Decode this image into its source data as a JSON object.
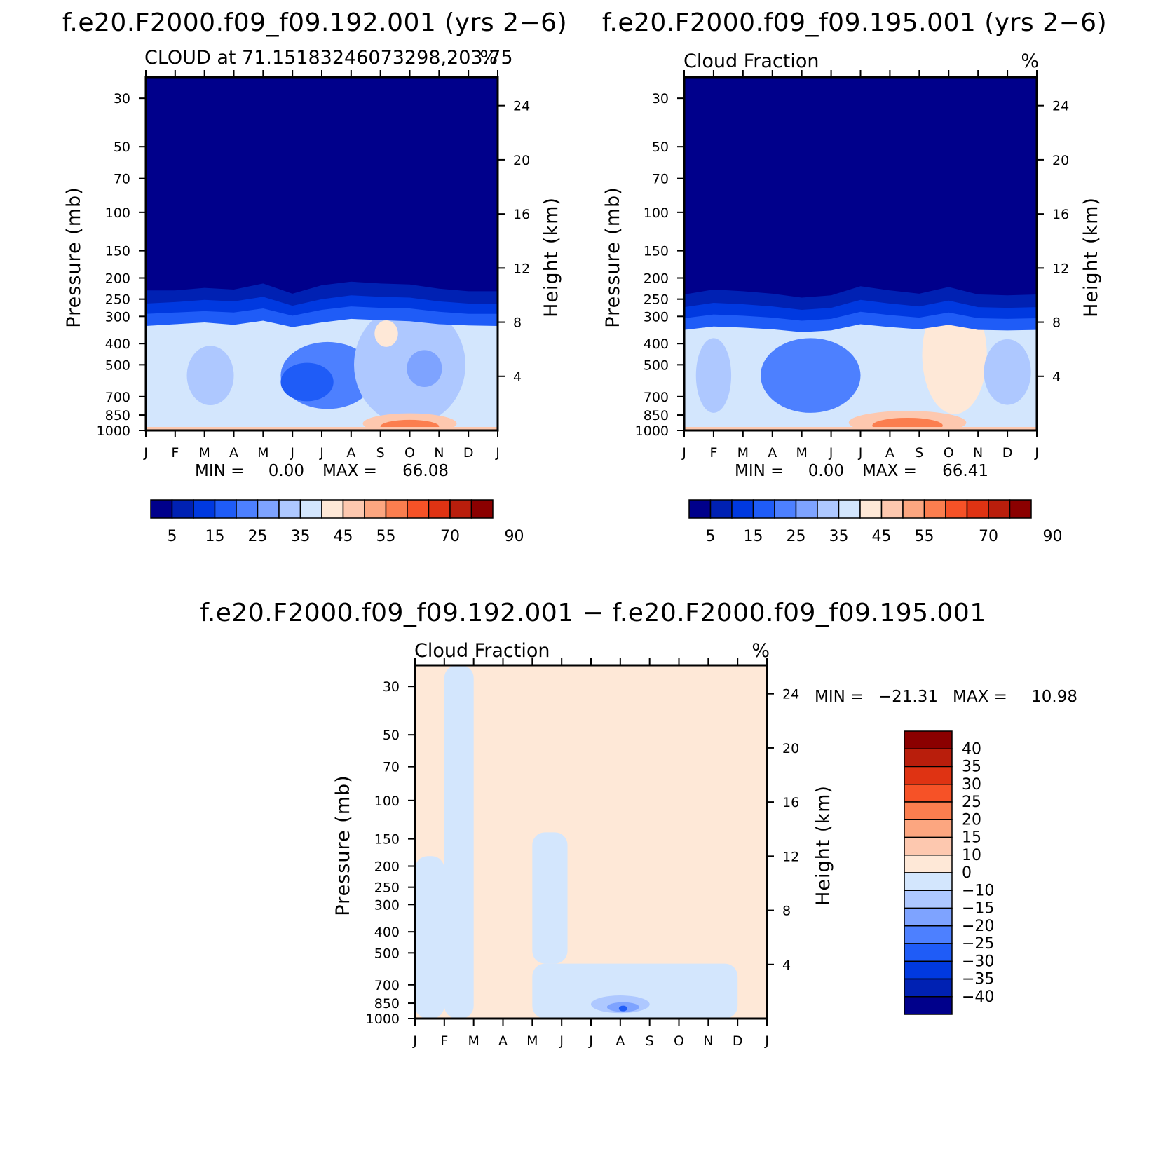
{
  "figure": {
    "panel_a_title": "f.e20.F2000.f09_f09.192.001 (yrs 2−6)",
    "panel_b_title": "f.e20.F2000.f09_f09.195.001 (yrs 2−6)",
    "diff_title": "f.e20.F2000.f09_f09.192.001 − f.e20.F2000.f09_f09.195.001"
  },
  "chart_data": [
    {
      "type": "heatmap",
      "panel": "a",
      "title": "f.e20.F2000.f09_f09.192.001 (yrs 2−6)",
      "subtitle_left": "CLOUD at 71.15183246073298,203.75",
      "subtitle_right": "%",
      "xlabel": "",
      "ylabel": "Pressure (mb)",
      "ylabel_right": "Height (km)",
      "x_ticks": [
        "J",
        "F",
        "M",
        "A",
        "M",
        "J",
        "J",
        "A",
        "S",
        "O",
        "N",
        "D",
        "J"
      ],
      "y_ticks": [
        30,
        50,
        70,
        100,
        150,
        200,
        250,
        300,
        400,
        500,
        700,
        850,
        1000
      ],
      "y_ticks_right": [
        24,
        20,
        16,
        12,
        8,
        4
      ],
      "ylim": [
        1000,
        24
      ],
      "stats": {
        "min_label": "MIN =",
        "min": "0.00",
        "max_label": "MAX =",
        "max": "66.08"
      },
      "colorbar_labels": [
        "5",
        "15",
        "25",
        "35",
        "45",
        "55",
        "70",
        "90"
      ],
      "colors": [
        "#00008b",
        "#0021b3",
        "#0039e0",
        "#1f5cf7",
        "#4d80ff",
        "#7ea3ff",
        "#aec8ff",
        "#d3e6fd",
        "#fee8d7",
        "#fdc8af",
        "#fca680",
        "#fb7e4f",
        "#f65227",
        "#df3313",
        "#b91e0c",
        "#8b0000"
      ],
      "bands": [
        {
          "level": 5,
          "p_top": [
            228,
            228,
            222,
            226,
            212,
            236,
            216,
            208,
            212,
            214,
            224,
            230,
            230
          ]
        },
        {
          "level": 10,
          "p_top": [
            262,
            258,
            252,
            256,
            244,
            268,
            250,
            240,
            244,
            246,
            256,
            262,
            262
          ]
        },
        {
          "level": 15,
          "p_top": [
            292,
            288,
            284,
            288,
            276,
            298,
            280,
            270,
            274,
            276,
            286,
            292,
            292
          ]
        },
        {
          "level": 20,
          "p_top": [
            332,
            326,
            320,
            328,
            314,
            336,
            320,
            308,
            312,
            316,
            326,
            330,
            332
          ]
        }
      ],
      "blobs": [
        {
          "month": 2.2,
          "p_center": 560,
          "months_wide": 1.6,
          "p_span": 340,
          "level": 30
        },
        {
          "month": 6.2,
          "p_center": 560,
          "months_wide": 3.2,
          "p_span": 380,
          "level": 20
        },
        {
          "month": 5.5,
          "p_center": 600,
          "months_wide": 1.8,
          "p_span": 240,
          "level": 15
        },
        {
          "month": 9.0,
          "p_center": 500,
          "months_wide": 3.8,
          "p_span": 560,
          "level": 30
        },
        {
          "month": 8.2,
          "p_center": 360,
          "months_wide": 0.8,
          "p_span": 100,
          "level": 40
        },
        {
          "month": 9.5,
          "p_center": 520,
          "months_wide": 1.2,
          "p_span": 200,
          "level": 25
        }
      ],
      "low_cloud": [
        {
          "month": 9.0,
          "p_center": 930,
          "months_wide": 3.2,
          "p_span": 150,
          "level": 45
        },
        {
          "month": 9.0,
          "p_center": 960,
          "months_wide": 2.0,
          "p_span": 80,
          "level": 55
        }
      ]
    },
    {
      "type": "heatmap",
      "panel": "b",
      "title": "f.e20.F2000.f09_f09.195.001 (yrs 2−6)",
      "subtitle_left": "Cloud Fraction",
      "subtitle_right": "%",
      "xlabel": "",
      "ylabel": "Pressure (mb)",
      "ylabel_right": "Height (km)",
      "x_ticks": [
        "J",
        "F",
        "M",
        "A",
        "M",
        "J",
        "J",
        "A",
        "S",
        "O",
        "N",
        "D",
        "J"
      ],
      "y_ticks": [
        30,
        50,
        70,
        100,
        150,
        200,
        250,
        300,
        400,
        500,
        700,
        850,
        1000
      ],
      "y_ticks_right": [
        24,
        20,
        16,
        12,
        8,
        4
      ],
      "ylim": [
        1000,
        24
      ],
      "stats": {
        "min_label": "MIN =",
        "min": "0.00",
        "max_label": "MAX =",
        "max": "66.41"
      },
      "colorbar_labels": [
        "5",
        "15",
        "25",
        "35",
        "45",
        "55",
        "70",
        "90"
      ],
      "colors": [
        "#00008b",
        "#0021b3",
        "#0039e0",
        "#1f5cf7",
        "#4d80ff",
        "#7ea3ff",
        "#aec8ff",
        "#d3e6fd",
        "#fee8d7",
        "#fdc8af",
        "#fca680",
        "#fb7e4f",
        "#f65227",
        "#df3313",
        "#b91e0c",
        "#8b0000"
      ],
      "bands": [
        {
          "level": 5,
          "p_top": [
            238,
            226,
            230,
            236,
            246,
            240,
            218,
            228,
            236,
            220,
            238,
            240,
            238
          ]
        },
        {
          "level": 10,
          "p_top": [
            272,
            260,
            264,
            270,
            280,
            274,
            252,
            262,
            270,
            254,
            272,
            274,
            272
          ]
        },
        {
          "level": 15,
          "p_top": [
            306,
            294,
            298,
            304,
            314,
            308,
            286,
            296,
            304,
            288,
            306,
            308,
            306
          ]
        },
        {
          "level": 20,
          "p_top": [
            346,
            334,
            338,
            344,
            354,
            348,
            326,
            336,
            344,
            328,
            346,
            348,
            346
          ]
        }
      ],
      "blobs": [
        {
          "month": 1.0,
          "p_center": 560,
          "months_wide": 1.2,
          "p_span": 420,
          "level": 30
        },
        {
          "month": 4.3,
          "p_center": 560,
          "months_wide": 3.4,
          "p_span": 420,
          "level": 20
        },
        {
          "month": 9.2,
          "p_center": 450,
          "months_wide": 2.2,
          "p_span": 500,
          "level": 40
        },
        {
          "month": 11.0,
          "p_center": 540,
          "months_wide": 1.6,
          "p_span": 360,
          "level": 30
        }
      ],
      "low_cloud": [
        {
          "month": 7.6,
          "p_center": 920,
          "months_wide": 4.0,
          "p_span": 180,
          "level": 45
        },
        {
          "month": 7.6,
          "p_center": 950,
          "months_wide": 2.4,
          "p_span": 100,
          "level": 55
        }
      ]
    },
    {
      "type": "heatmap",
      "panel": "diff",
      "title": "f.e20.F2000.f09_f09.192.001 − f.e20.F2000.f09_f09.195.001",
      "subtitle_left": "Cloud Fraction",
      "subtitle_right": "%",
      "xlabel": "",
      "ylabel": "Pressure (mb)",
      "ylabel_right": "Height (km)",
      "x_ticks": [
        "J",
        "F",
        "M",
        "A",
        "M",
        "J",
        "J",
        "A",
        "S",
        "O",
        "N",
        "D",
        "J"
      ],
      "y_ticks": [
        30,
        50,
        70,
        100,
        150,
        200,
        250,
        300,
        400,
        500,
        700,
        850,
        1000
      ],
      "y_ticks_right": [
        24,
        20,
        16,
        12,
        8,
        4
      ],
      "ylim": [
        1000,
        24
      ],
      "stats": {
        "min_label": "MIN =",
        "min": "−21.31",
        "max_label": "MAX =",
        "max": "10.98"
      },
      "colorbar_labels": [
        "40",
        "35",
        "30",
        "25",
        "20",
        "15",
        "10",
        "0",
        "−10",
        "−15",
        "−20",
        "−25",
        "−30",
        "−35",
        "−40"
      ],
      "colors": [
        "#8b0000",
        "#b91e0c",
        "#df3313",
        "#f65227",
        "#fb7e4f",
        "#fca680",
        "#fdc8af",
        "#fee8d7",
        "#d3e6fd",
        "#aec8ff",
        "#7ea3ff",
        "#4d80ff",
        "#1f5cf7",
        "#0039e0",
        "#0021b3",
        "#00008b"
      ],
      "regions": [
        {
          "level": "0 to -10",
          "month_from": 1.0,
          "month_to": 2.0,
          "p_from": 24,
          "p_to": 1000
        },
        {
          "level": "0 to -10",
          "month_from": 0.0,
          "month_to": 1.0,
          "p_from": 180,
          "p_to": 1000
        },
        {
          "level": "0 to -10",
          "month_from": 4.0,
          "month_to": 11.0,
          "p_from": 560,
          "p_to": 1000
        },
        {
          "level": "0 to -10",
          "month_from": 4.0,
          "month_to": 5.2,
          "p_from": 140,
          "p_to": 560
        }
      ],
      "minimum_blob": {
        "month": 7.0,
        "p_center": 860,
        "months_wide": 2.0,
        "p_span": 160,
        "level": "-10 to -25"
      }
    }
  ]
}
